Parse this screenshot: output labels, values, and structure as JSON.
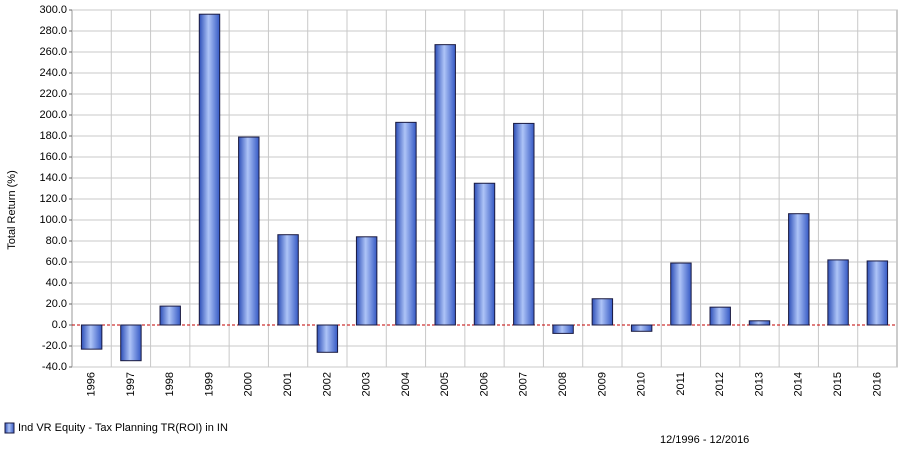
{
  "chart_data": {
    "type": "bar",
    "y_label": "Total Return (%)",
    "annotation": "12/1996 - 12/2016",
    "categories": [
      "1996",
      "1997",
      "1998",
      "1999",
      "2000",
      "2001",
      "2002",
      "2003",
      "2004",
      "2005",
      "2006",
      "2007",
      "2008",
      "2009",
      "2010",
      "2011",
      "2012",
      "2013",
      "2014",
      "2015",
      "2016"
    ],
    "series": [
      {
        "name": "Ind VR Equity - Tax Planning TR(ROI) in IN",
        "color": "#5b7fe0",
        "values": [
          -23,
          -34,
          18,
          296,
          179,
          86,
          -26,
          84,
          193,
          267,
          135,
          192,
          -8,
          25,
          -6,
          59,
          17,
          4,
          106,
          62,
          61
        ]
      }
    ],
    "ylim": [
      -40,
      300
    ],
    "yticks": [
      {
        "value": -40,
        "label": "-40.0"
      },
      {
        "value": -20,
        "label": "-20.0"
      },
      {
        "value": 0,
        "label": "0.0"
      },
      {
        "value": 20,
        "label": "20.0"
      },
      {
        "value": 40,
        "label": "40.0"
      },
      {
        "value": 60,
        "label": "60.0"
      },
      {
        "value": 80,
        "label": "80.0"
      },
      {
        "value": 100,
        "label": "100.0"
      },
      {
        "value": 120,
        "label": "120.0"
      },
      {
        "value": 140,
        "label": "140.0"
      },
      {
        "value": 160,
        "label": "160.0"
      },
      {
        "value": 180,
        "label": "180.0"
      },
      {
        "value": 200,
        "label": "200.0"
      },
      {
        "value": 220,
        "label": "220.0"
      },
      {
        "value": 240,
        "label": "240.0"
      },
      {
        "value": 260,
        "label": "260.0"
      },
      {
        "value": 280,
        "label": "280.0"
      },
      {
        "value": 300,
        "label": "300.0"
      }
    ],
    "grid": true,
    "legend": "bottom-left"
  }
}
